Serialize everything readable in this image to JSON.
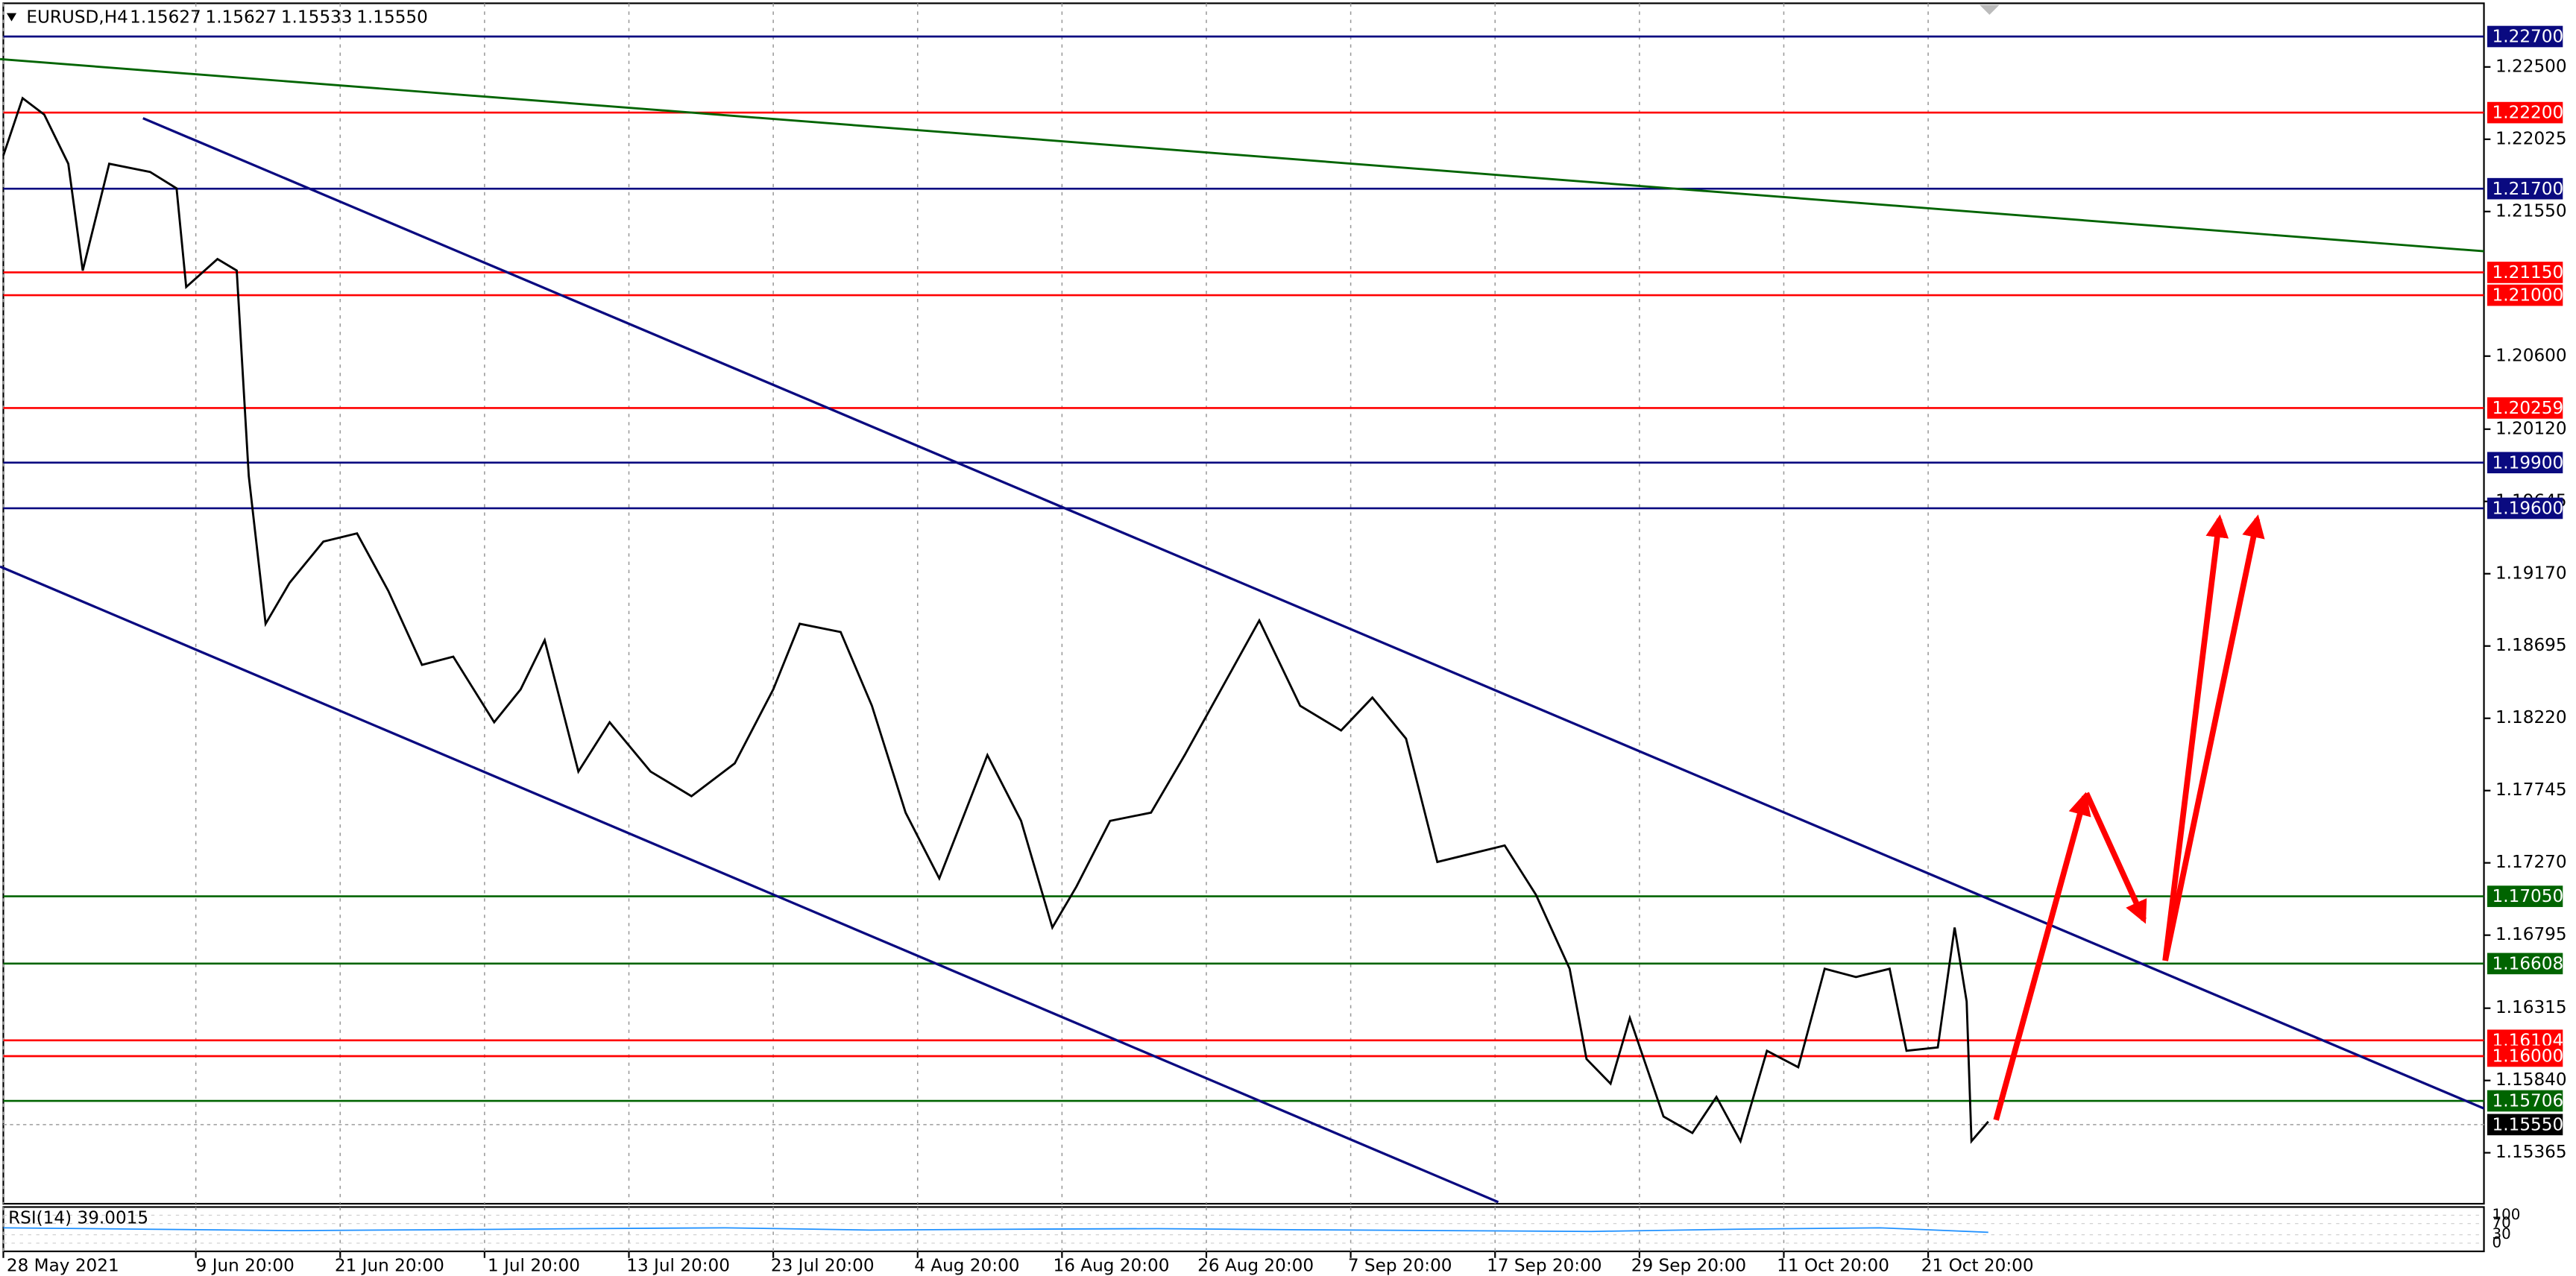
{
  "header": {
    "symbol": "EURUSD,H4",
    "ohlc": [
      "1.15627",
      "1.15627",
      "1.15533",
      "1.15550"
    ]
  },
  "chart_data": [
    {
      "type": "line",
      "x": [
        0,
        8,
        17,
        27,
        33,
        44,
        61,
        72,
        76,
        89,
        97,
        102,
        109,
        119,
        133,
        147,
        160,
        174,
        187,
        204,
        215,
        225,
        239,
        252,
        269,
        286,
        304,
        320,
        331,
        348,
        361,
        375,
        389,
        409,
        423,
        436,
        446,
        460,
        477,
        491,
        508,
        522,
        539,
        556,
        569,
        583,
        596,
        610,
        624,
        637,
        651,
        658,
        668,
        676,
        690,
        702,
        712,
        722,
        733,
        746,
        757,
        770,
        784,
        791,
        804,
        811,
        816,
        818,
        825
      ],
      "series": [
        {
          "color": "#000000",
          "values": [
            1.21918,
            1.22295,
            1.22187,
            1.21864,
            1.21162,
            1.21864,
            1.2181,
            1.21702,
            1.21054,
            1.21238,
            1.21162,
            1.19813,
            1.18841,
            1.19111,
            1.19381,
            1.19435,
            1.19057,
            1.18571,
            1.18625,
            1.18194,
            1.1841,
            1.18733,
            1.1787,
            1.18194,
            1.1787,
            1.17708,
            1.17924,
            1.1841,
            1.18841,
            1.18787,
            1.18302,
            1.176,
            1.17168,
            1.17978,
            1.17546,
            1.16845,
            1.17114,
            1.17546,
            1.176,
            1.17978,
            1.18463,
            1.18863,
            1.18302,
            1.1814,
            1.18356,
            1.18086,
            1.17276,
            1.1733,
            1.17384,
            1.1706,
            1.16574,
            1.15981,
            1.15819,
            1.16251,
            1.15603,
            1.15495,
            1.15732,
            1.15441,
            1.16035,
            1.15927,
            1.16574,
            1.1652,
            1.16574,
            1.16035,
            1.16057,
            1.16845,
            1.16359,
            1.15441,
            1.1557
          ]
        }
      ],
      "xlim": [
        0,
        1031
      ],
      "xticks": [
        {
          "value": 0,
          "label": "28 May 2021"
        },
        {
          "value": 80,
          "label": "9 Jun 20:00"
        },
        {
          "value": 140,
          "label": "21 Jun 20:00"
        },
        {
          "value": 200,
          "label": "1 Jul 20:00"
        },
        {
          "value": 260,
          "label": "13 Jul 20:00"
        },
        {
          "value": 320,
          "label": "23 Jul 20:00"
        },
        {
          "value": 380,
          "label": "4 Aug 20:00"
        },
        {
          "value": 440,
          "label": "16 Aug 20:00"
        },
        {
          "value": 500,
          "label": "26 Aug 20:00"
        },
        {
          "value": 560,
          "label": "7 Sep 20:00"
        },
        {
          "value": 620,
          "label": "17 Sep 20:00"
        },
        {
          "value": 680,
          "label": "29 Sep 20:00"
        },
        {
          "value": 740,
          "label": "11 Oct 20:00"
        },
        {
          "value": 800,
          "label": "21 Oct 20:00"
        }
      ],
      "ylim": [
        1.1503,
        1.2294
      ],
      "yticks": [
        {
          "value": 1.225,
          "label": "1.22500"
        },
        {
          "value": 1.22025,
          "label": "1.22025"
        },
        {
          "value": 1.2155,
          "label": "1.21550"
        },
        {
          "value": 1.206,
          "label": "1.20600"
        },
        {
          "value": 1.2012,
          "label": "1.20120"
        },
        {
          "value": 1.19645,
          "label": "1.19645"
        },
        {
          "value": 1.1917,
          "label": "1.19170"
        },
        {
          "value": 1.18695,
          "label": "1.18695"
        },
        {
          "value": 1.1822,
          "label": "1.18220"
        },
        {
          "value": 1.17745,
          "label": "1.17745"
        },
        {
          "value": 1.1727,
          "label": "1.17270"
        },
        {
          "value": 1.16795,
          "label": "1.16795"
        },
        {
          "value": 1.16315,
          "label": "1.16315"
        },
        {
          "value": 1.1584,
          "label": "1.15840"
        },
        {
          "value": 1.15365,
          "label": "1.15365"
        }
      ],
      "grid": true,
      "levels": [
        {
          "value": 1.227,
          "label": "1.22700",
          "color": "#0a0a80"
        },
        {
          "value": 1.222,
          "label": "1.22200",
          "color": "#ff0000"
        },
        {
          "value": 1.217,
          "label": "1.21700",
          "color": "#0a0a80"
        },
        {
          "value": 1.2115,
          "label": "1.21150",
          "color": "#ff0000"
        },
        {
          "value": 1.21,
          "label": "1.21000",
          "color": "#ff0000"
        },
        {
          "value": 1.20259,
          "label": "1.20259",
          "color": "#ff0000"
        },
        {
          "value": 1.199,
          "label": "1.19900",
          "color": "#0a0a80"
        },
        {
          "value": 1.196,
          "label": "1.19600",
          "color": "#0a0a80"
        },
        {
          "value": 1.1705,
          "label": "1.17050",
          "color": "#006400"
        },
        {
          "value": 1.16608,
          "label": "1.16608",
          "color": "#006400"
        },
        {
          "value": 1.16104,
          "label": "1.16104",
          "color": "#ff0000"
        },
        {
          "value": 1.16,
          "label": "1.16000",
          "color": "#ff0000"
        },
        {
          "value": 1.15706,
          "label": "1.15706",
          "color": "#006400"
        },
        {
          "value": 1.1555,
          "label": "1.15550",
          "color": "#000000"
        }
      ]
    },
    {
      "type": "line",
      "title": "RSI(14) 39.0015",
      "x": [
        0,
        60,
        120,
        180,
        240,
        300,
        360,
        420,
        480,
        540,
        600,
        660,
        720,
        780,
        825
      ],
      "series": [
        {
          "color": "#1e90ff",
          "values": [
            55,
            50,
            45,
            48,
            52,
            55,
            47,
            50,
            52,
            48,
            45,
            42,
            50,
            55,
            39
          ]
        }
      ],
      "xlim": [
        0,
        1031
      ],
      "ylim": [
        0,
        100
      ],
      "yticks": [
        0,
        30,
        70,
        100
      ]
    }
  ]
}
